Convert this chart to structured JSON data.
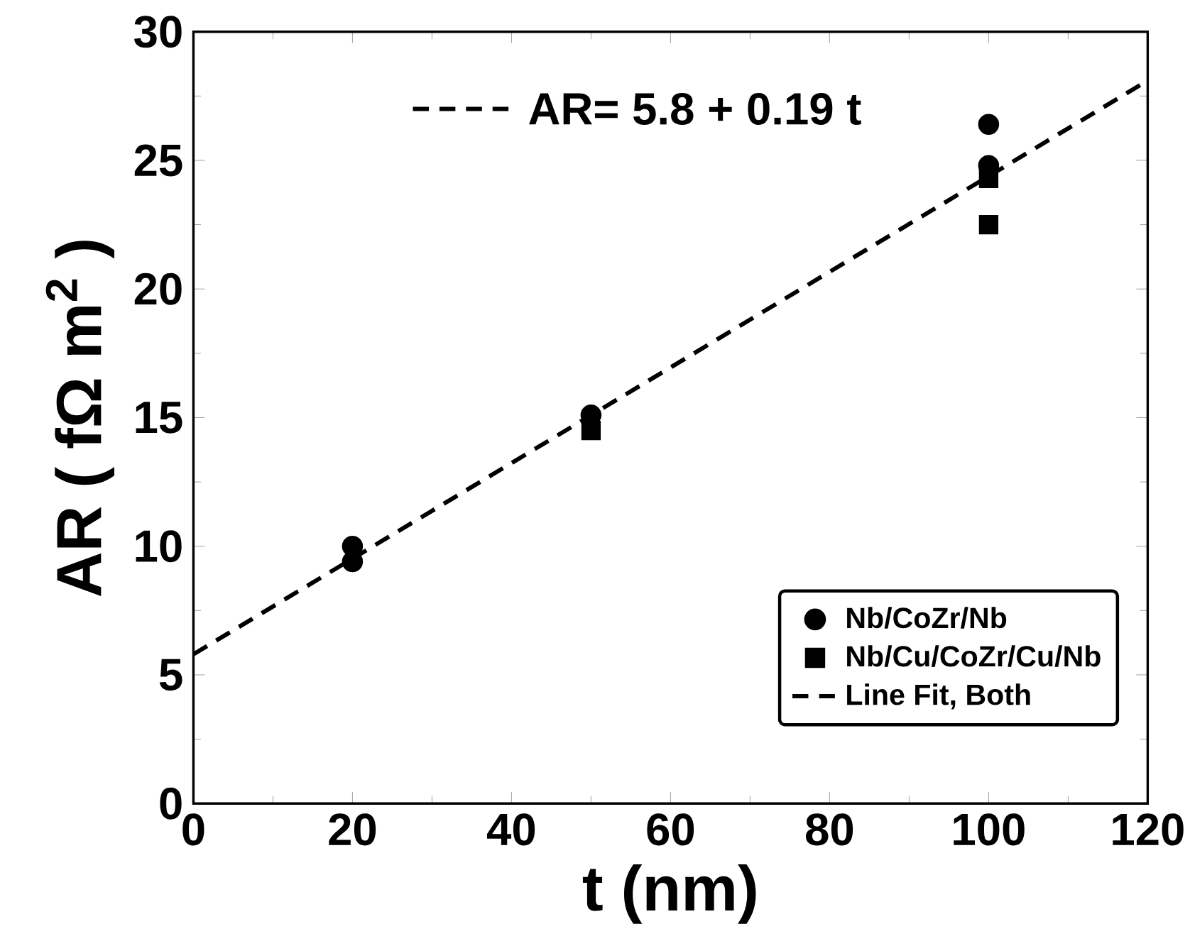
{
  "chart_data": {
    "type": "scatter",
    "xlabel": "t (nm)",
    "ylabel": "AR ( fΩ m$^{2}$ )",
    "annotations": [
      "AR= 5.8 + 0.19 t"
    ],
    "xlim": [
      0,
      120
    ],
    "ylim": [
      0,
      30
    ],
    "xticks": [
      0,
      20,
      40,
      60,
      80,
      100,
      120
    ],
    "yticks": [
      0,
      5,
      10,
      15,
      20,
      25,
      30
    ],
    "legend": "bottom right",
    "grid": false,
    "series": [
      {
        "name": "Nb/CoZr/Nb",
        "color": "#000000",
        "marker": "circle",
        "x": [
          20,
          20,
          50,
          100,
          100
        ],
        "values": [
          10.0,
          9.4,
          15.1,
          26.4,
          24.8
        ]
      },
      {
        "name": "Nb/Cu/CoZr/Cu/Nb",
        "color": "#000000",
        "marker": "square",
        "x": [
          50,
          100,
          100
        ],
        "values": [
          14.5,
          24.3,
          22.5
        ]
      },
      {
        "name": "Line Fit, Both",
        "type": "line",
        "color": "#000000",
        "line_style": "dashed",
        "marker": "none",
        "x": [
          0,
          120
        ],
        "values": [
          5.8,
          28.1
        ]
      }
    ]
  }
}
